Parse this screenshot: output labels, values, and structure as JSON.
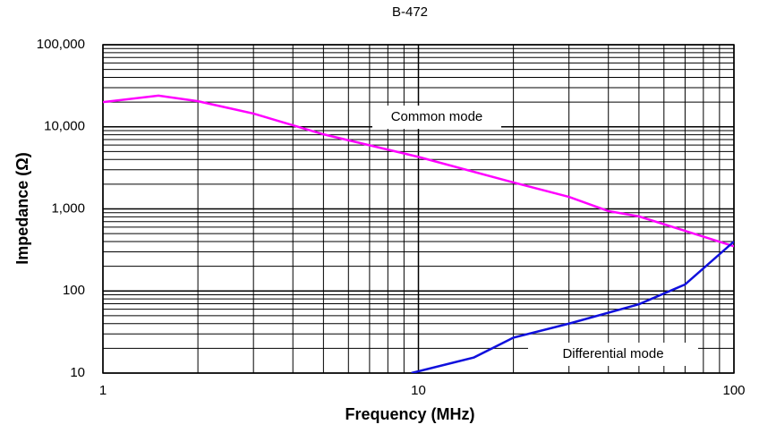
{
  "chart_data": {
    "type": "line",
    "title": "B-472",
    "x_label": "Frequency (MHz)",
    "y_label": "Impedance (Ω)",
    "log_x": true,
    "log_y": true,
    "grid": true,
    "minor_grid": true,
    "xlim": [
      1,
      100
    ],
    "ylim": [
      10,
      100000
    ],
    "xticks": [
      1,
      10,
      100
    ],
    "yticks": [
      10,
      100,
      {
        "value": 1000,
        "label": "1,000"
      },
      {
        "value": 10000,
        "label": "10,000"
      },
      {
        "value": 100000,
        "label": "100,000"
      }
    ],
    "series": [
      {
        "name": "Common mode",
        "color": "#ff00ff",
        "x": [
          1,
          1.5,
          2,
          3,
          5,
          10,
          20,
          30,
          40,
          50,
          70,
          100
        ],
        "values": [
          20000,
          24000,
          20500,
          14500,
          8100,
          4300,
          2100,
          1400,
          940,
          810,
          540,
          350
        ]
      },
      {
        "name": "Differential mode",
        "color": "#1010dd",
        "x": [
          9.5,
          15,
          20,
          30,
          50,
          70,
          100
        ],
        "values": [
          10,
          15.5,
          27,
          40,
          69,
          120,
          400
        ]
      }
    ]
  }
}
